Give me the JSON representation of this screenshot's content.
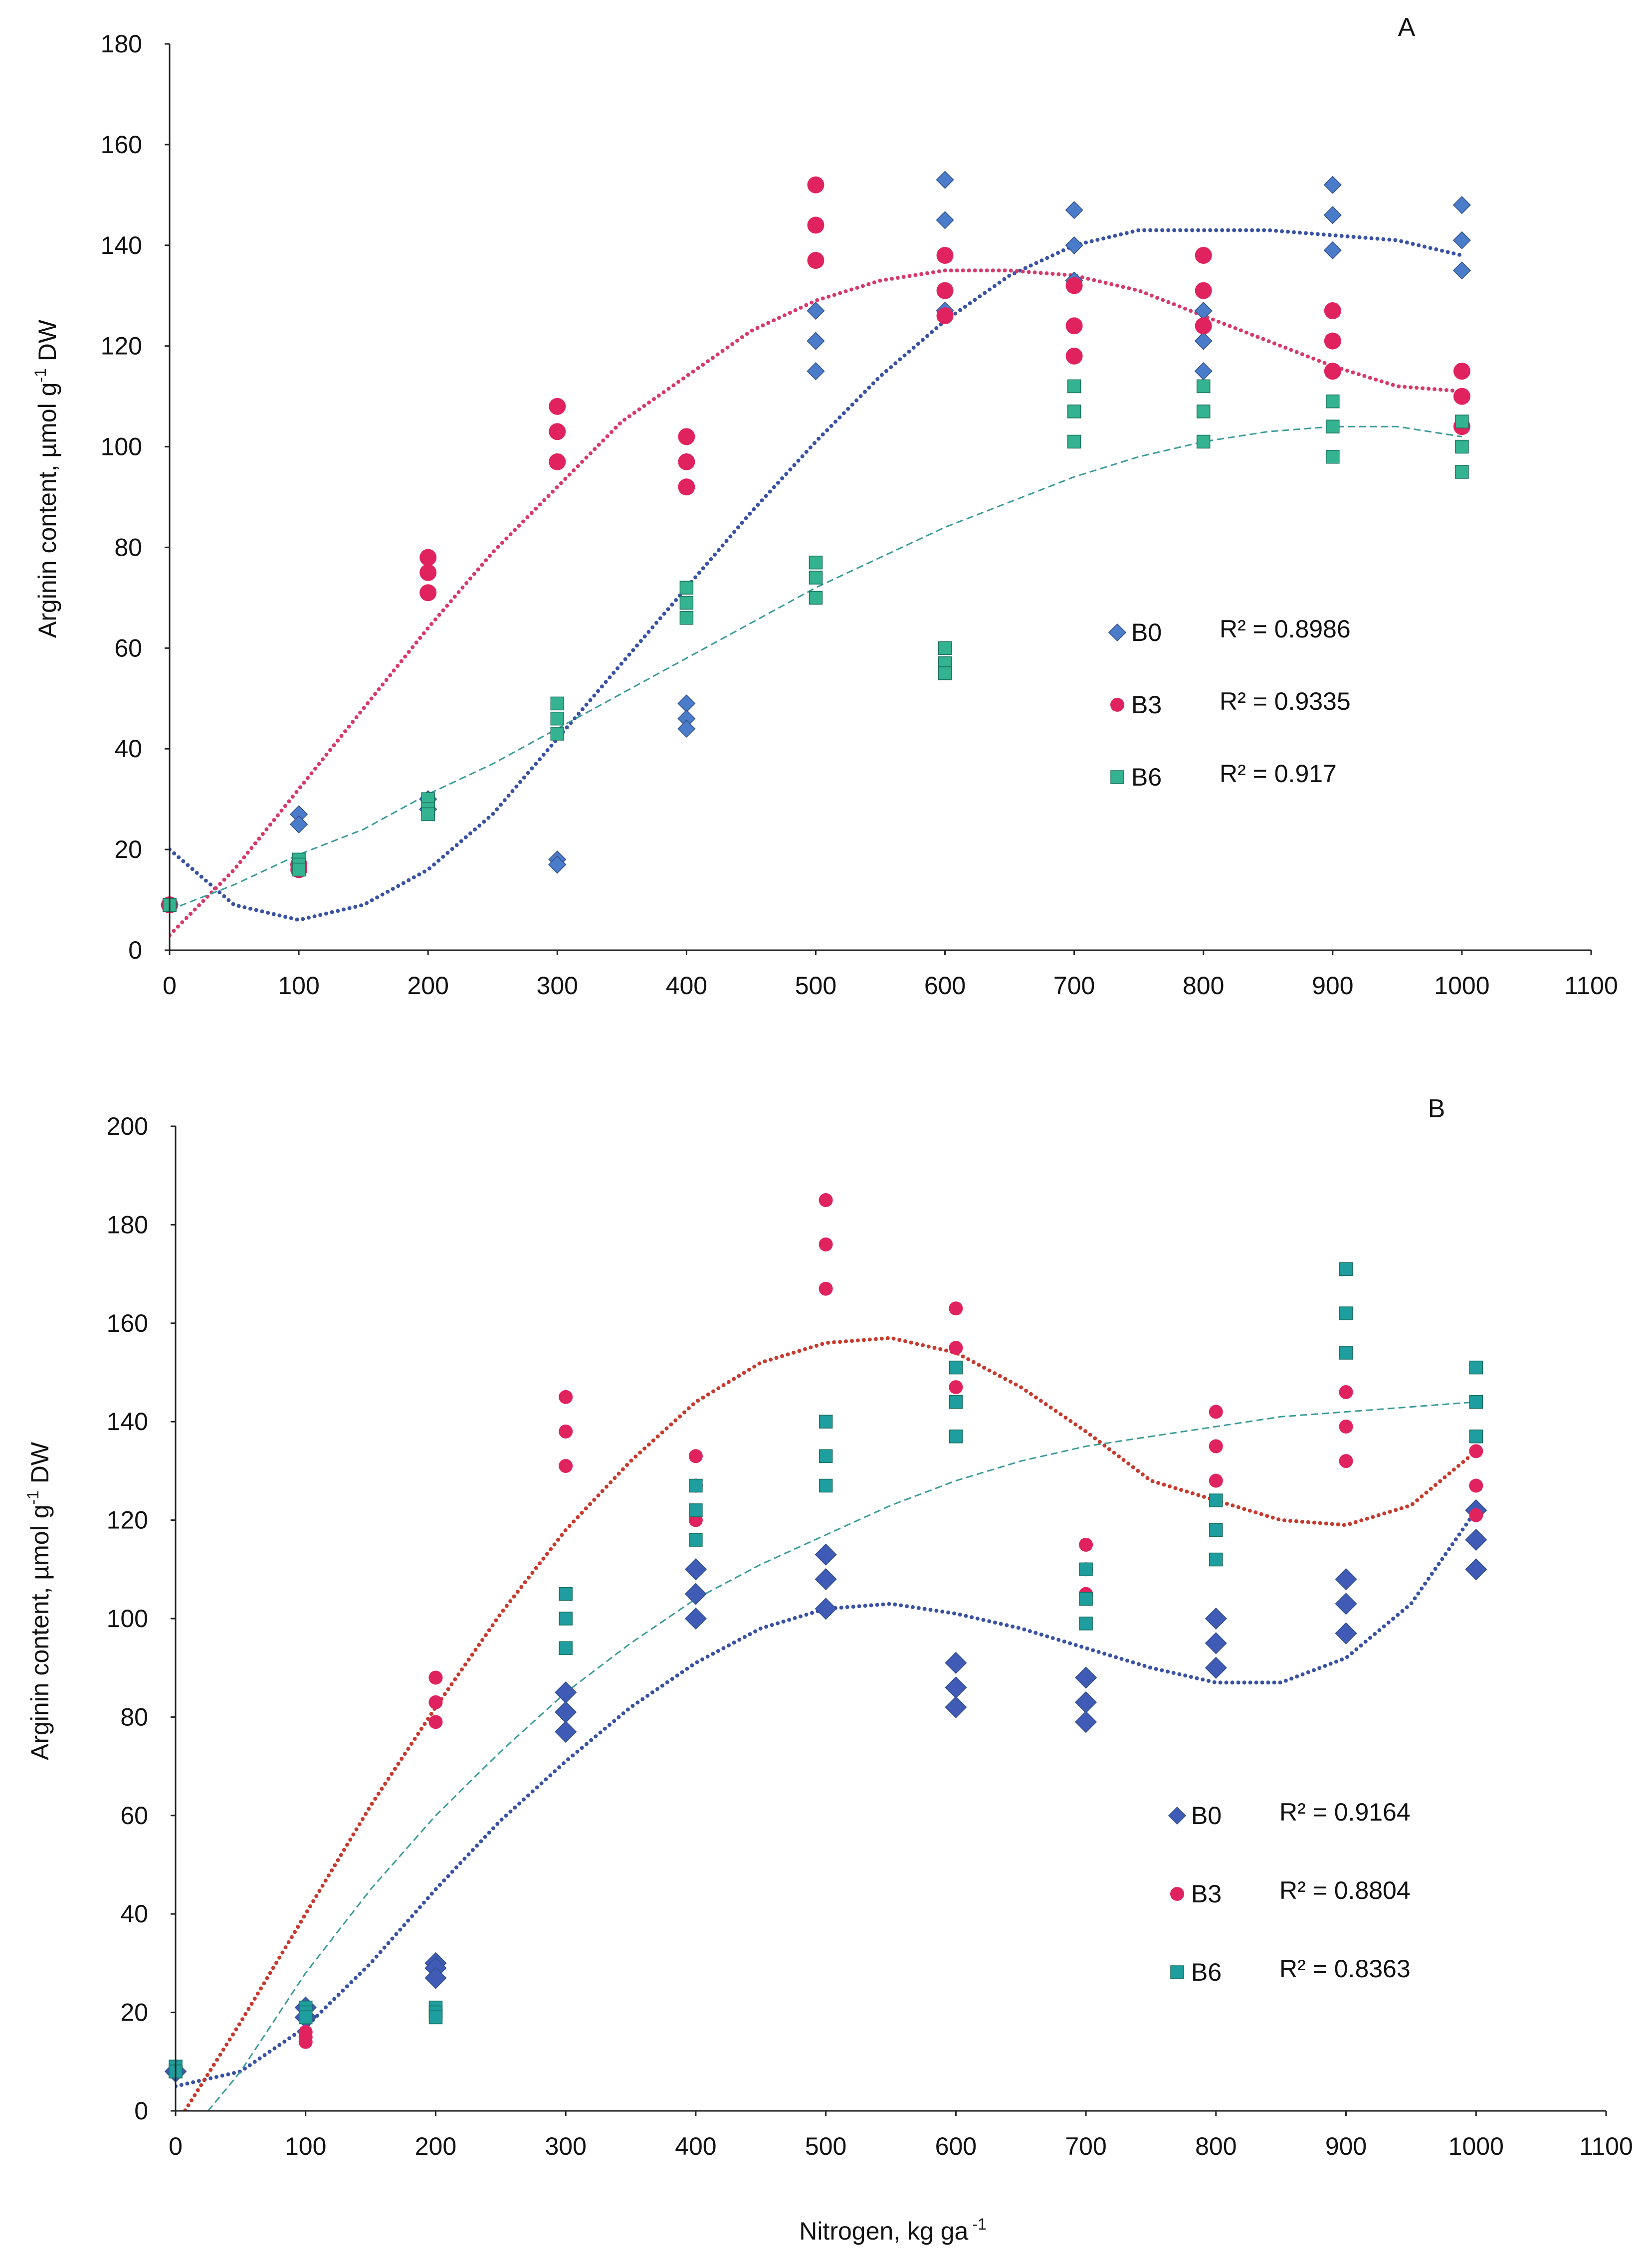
{
  "figure": {
    "xlabel": "Nitrogen, kg ga",
    "xlabel_sup": "-1"
  },
  "chart_data": [
    {
      "type": "scatter",
      "panel_label": "A",
      "title": "",
      "ylabel": "Arginin content, µmol g",
      "ylabel_sup": "-1",
      "ylabel_suffix": " DW",
      "xlim": [
        0,
        1100
      ],
      "ylim": [
        0,
        180
      ],
      "xticks": [
        0,
        100,
        200,
        300,
        400,
        500,
        600,
        700,
        800,
        900,
        1000,
        1100
      ],
      "yticks": [
        0,
        20,
        40,
        60,
        80,
        100,
        120,
        140,
        160,
        180
      ],
      "series": [
        {
          "name": "B0",
          "marker": "diamond",
          "marker_size": "small",
          "color": "#4a7cc9",
          "trend_color": "#3a52a4",
          "trend_style": "dotted",
          "r2_label": "R² = 0.8986",
          "x": [
            0,
            0,
            0,
            100,
            100,
            100,
            200,
            200,
            200,
            300,
            300,
            300,
            400,
            400,
            400,
            500,
            500,
            500,
            600,
            600,
            600,
            700,
            700,
            700,
            800,
            800,
            800,
            900,
            900,
            900,
            1000,
            1000,
            1000
          ],
          "y": [
            9,
            9,
            9,
            27,
            25,
            25,
            30,
            28,
            28,
            18,
            17,
            17,
            49,
            46,
            44,
            127,
            121,
            115,
            153,
            145,
            127,
            147,
            140,
            133,
            127,
            121,
            115,
            152,
            146,
            139,
            148,
            141,
            135
          ],
          "trend_x": [
            0,
            50,
            100,
            150,
            200,
            250,
            300,
            350,
            400,
            450,
            500,
            550,
            600,
            650,
            700,
            750,
            800,
            850,
            900,
            950,
            1000
          ],
          "trend_y": [
            20,
            9,
            6,
            9,
            16,
            27,
            42,
            57,
            72,
            87,
            101,
            114,
            125,
            134,
            140,
            143,
            143,
            143,
            142,
            141,
            138
          ]
        },
        {
          "name": "B3",
          "marker": "circle",
          "marker_size": "large",
          "color": "#e0235f",
          "trend_color": "#d63a6a",
          "trend_style": "dotted",
          "r2_label": "R² =  0.9335",
          "x": [
            0,
            0,
            0,
            100,
            100,
            100,
            200,
            200,
            200,
            300,
            300,
            300,
            400,
            400,
            400,
            500,
            500,
            500,
            600,
            600,
            600,
            700,
            700,
            700,
            800,
            800,
            800,
            900,
            900,
            900,
            1000,
            1000,
            1000
          ],
          "y": [
            9,
            9,
            9,
            16,
            17,
            17,
            78,
            75,
            71,
            108,
            103,
            97,
            102,
            97,
            92,
            152,
            144,
            137,
            138,
            131,
            126,
            132,
            124,
            118,
            138,
            131,
            124,
            127,
            121,
            115,
            115,
            110,
            104
          ],
          "trend_x": [
            0,
            50,
            100,
            150,
            200,
            250,
            300,
            350,
            400,
            450,
            500,
            550,
            600,
            650,
            700,
            750,
            800,
            850,
            900,
            950,
            1000
          ],
          "trend_y": [
            3,
            16,
            32,
            48,
            64,
            79,
            92,
            105,
            114,
            123,
            129,
            133,
            135,
            135,
            134,
            131,
            126,
            121,
            116,
            112,
            111
          ]
        },
        {
          "name": "B6",
          "marker": "square",
          "marker_size": "small",
          "color": "#33b38f",
          "trend_color": "#3a9a9a",
          "trend_style": "dashed",
          "r2_label": "R² =  0.917",
          "x": [
            0,
            0,
            0,
            100,
            100,
            100,
            200,
            200,
            200,
            300,
            300,
            300,
            400,
            400,
            400,
            500,
            500,
            500,
            600,
            600,
            600,
            700,
            700,
            700,
            800,
            800,
            800,
            900,
            900,
            900,
            1000,
            1000,
            1000
          ],
          "y": [
            9,
            9,
            9,
            18,
            17,
            16,
            30,
            28,
            27,
            49,
            46,
            43,
            72,
            69,
            66,
            77,
            74,
            70,
            60,
            57,
            55,
            112,
            107,
            101,
            112,
            107,
            101,
            109,
            104,
            98,
            105,
            100,
            95
          ],
          "trend_x": [
            0,
            50,
            100,
            150,
            200,
            250,
            300,
            350,
            400,
            450,
            500,
            550,
            600,
            650,
            700,
            750,
            800,
            850,
            900,
            950,
            1000
          ],
          "trend_y": [
            8,
            13,
            19,
            24,
            31,
            37,
            44,
            51,
            58,
            65,
            72,
            78,
            84,
            89,
            94,
            98,
            101,
            103,
            104,
            104,
            102
          ]
        }
      ]
    },
    {
      "type": "scatter",
      "panel_label": "B",
      "title": "",
      "ylabel": "Arginin content, µmol g",
      "ylabel_sup": "-1",
      "ylabel_suffix": " DW",
      "xlim": [
        0,
        1100
      ],
      "ylim": [
        0,
        200
      ],
      "xticks": [
        0,
        100,
        200,
        300,
        400,
        500,
        600,
        700,
        800,
        900,
        1000,
        1100
      ],
      "yticks": [
        0,
        20,
        40,
        60,
        80,
        100,
        120,
        140,
        160,
        180,
        200
      ],
      "series": [
        {
          "name": "B0",
          "marker": "diamond",
          "marker_size": "large",
          "color": "#3f5bb5",
          "trend_color": "#3a52a4",
          "trend_style": "dotted",
          "r2_label": "R²  =  0.9164",
          "x": [
            0,
            0,
            0,
            100,
            100,
            100,
            200,
            200,
            200,
            300,
            300,
            300,
            400,
            400,
            400,
            500,
            500,
            500,
            600,
            600,
            600,
            700,
            700,
            700,
            800,
            800,
            800,
            900,
            900,
            900,
            1000,
            1000,
            1000
          ],
          "y": [
            8,
            8,
            8,
            21,
            19,
            19,
            30,
            29,
            27,
            85,
            81,
            77,
            110,
            105,
            100,
            113,
            108,
            102,
            91,
            86,
            82,
            88,
            83,
            79,
            100,
            95,
            90,
            108,
            103,
            97,
            122,
            116,
            110
          ],
          "trend_x": [
            0,
            50,
            100,
            150,
            200,
            250,
            300,
            350,
            400,
            450,
            500,
            550,
            600,
            650,
            700,
            750,
            800,
            850,
            900,
            950,
            1000
          ],
          "trend_y": [
            5,
            8,
            17,
            30,
            45,
            59,
            71,
            82,
            91,
            98,
            102,
            103,
            101,
            98,
            94,
            90,
            87,
            87,
            92,
            103,
            122
          ]
        },
        {
          "name": "B3",
          "marker": "circle",
          "marker_size": "small",
          "color": "#e0235f",
          "trend_color": "#c73a2e",
          "trend_style": "dotted",
          "r2_label": "R²  =   0.8804",
          "x": [
            0,
            0,
            0,
            100,
            100,
            100,
            200,
            200,
            200,
            300,
            300,
            300,
            400,
            400,
            400,
            500,
            500,
            500,
            600,
            600,
            600,
            700,
            700,
            700,
            800,
            800,
            800,
            900,
            900,
            900,
            1000,
            1000,
            1000
          ],
          "y": [
            8,
            8,
            8,
            16,
            15,
            14,
            88,
            83,
            79,
            145,
            138,
            131,
            133,
            127,
            120,
            185,
            176,
            167,
            163,
            155,
            147,
            115,
            110,
            105,
            142,
            135,
            128,
            146,
            139,
            132,
            134,
            127,
            121
          ],
          "trend_x": [
            0,
            50,
            100,
            150,
            200,
            250,
            300,
            350,
            400,
            450,
            500,
            550,
            600,
            650,
            700,
            750,
            800,
            850,
            900,
            950,
            1000
          ],
          "trend_y": [
            -3,
            18,
            40,
            62,
            82,
            101,
            118,
            132,
            144,
            152,
            156,
            157,
            154,
            147,
            138,
            128,
            124,
            120,
            119,
            123,
            134
          ]
        },
        {
          "name": "B6",
          "marker": "square",
          "marker_size": "small",
          "color": "#1e9e9e",
          "trend_color": "#3a9a9a",
          "trend_style": "dashed",
          "r2_label": "R²  =     0.8363",
          "x": [
            0,
            0,
            0,
            100,
            100,
            100,
            200,
            200,
            200,
            300,
            300,
            300,
            400,
            400,
            400,
            500,
            500,
            500,
            600,
            600,
            600,
            700,
            700,
            700,
            800,
            800,
            800,
            900,
            900,
            900,
            1000,
            1000,
            1000
          ],
          "y": [
            9,
            8,
            8,
            21,
            20,
            19,
            21,
            20,
            19,
            105,
            100,
            94,
            127,
            122,
            116,
            140,
            133,
            127,
            151,
            144,
            137,
            110,
            104,
            99,
            124,
            118,
            112,
            171,
            162,
            154,
            151,
            144,
            137
          ],
          "trend_x": [
            25,
            50,
            100,
            150,
            200,
            250,
            300,
            350,
            400,
            450,
            500,
            550,
            600,
            650,
            700,
            750,
            800,
            850,
            900,
            950,
            1000
          ],
          "trend_y": [
            0,
            8,
            28,
            45,
            60,
            73,
            85,
            95,
            104,
            111,
            117,
            123,
            128,
            132,
            135,
            137,
            139,
            141,
            142,
            143,
            144
          ]
        }
      ]
    }
  ]
}
